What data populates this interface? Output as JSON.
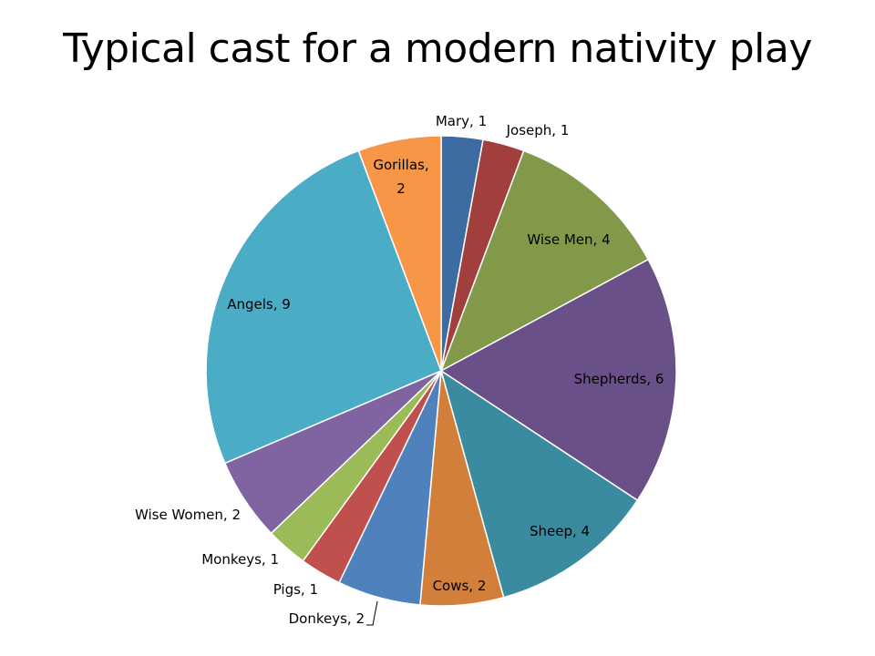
{
  "chart_data": {
    "type": "pie",
    "title": "Typical cast for a modern nativity play",
    "start_angle_deg": 0,
    "direction": "clockwise",
    "slices": [
      {
        "label": "Mary",
        "value": 1,
        "color": "#3F6BA3",
        "text": [
          "Mary, 1"
        ]
      },
      {
        "label": "Joseph",
        "value": 1,
        "color": "#A13F3C",
        "text": [
          "Joseph, 1"
        ]
      },
      {
        "label": "Wise Men",
        "value": 4,
        "color": "#82994A",
        "text": [
          "Wise Men, 4"
        ]
      },
      {
        "label": "Shepherds",
        "value": 6,
        "color": "#6A5088",
        "text": [
          "Shepherds, 6"
        ]
      },
      {
        "label": "Sheep",
        "value": 4,
        "color": "#3A8BA0",
        "text": [
          "Sheep, 4"
        ]
      },
      {
        "label": "Cows",
        "value": 2,
        "color": "#D17F3A",
        "text": [
          "Cows, 2"
        ]
      },
      {
        "label": "Donkeys",
        "value": 2,
        "color": "#4F81BD",
        "text": [
          "Donkeys, 2"
        ]
      },
      {
        "label": "Pigs",
        "value": 1,
        "color": "#C0504D",
        "text": [
          "Pigs, 1"
        ]
      },
      {
        "label": "Monkeys",
        "value": 1,
        "color": "#9BBB59",
        "text": [
          "Monkeys, 1"
        ]
      },
      {
        "label": "Wise Women",
        "value": 2,
        "color": "#8064A2",
        "text": [
          "Wise Women, 2"
        ]
      },
      {
        "label": "Angels",
        "value": 9,
        "color": "#4BACC6",
        "text": [
          "Angels, 9"
        ]
      },
      {
        "label": "Gorillas",
        "value": 2,
        "color": "#F79646",
        "text": [
          "Gorillas,",
          "2"
        ]
      }
    ]
  }
}
